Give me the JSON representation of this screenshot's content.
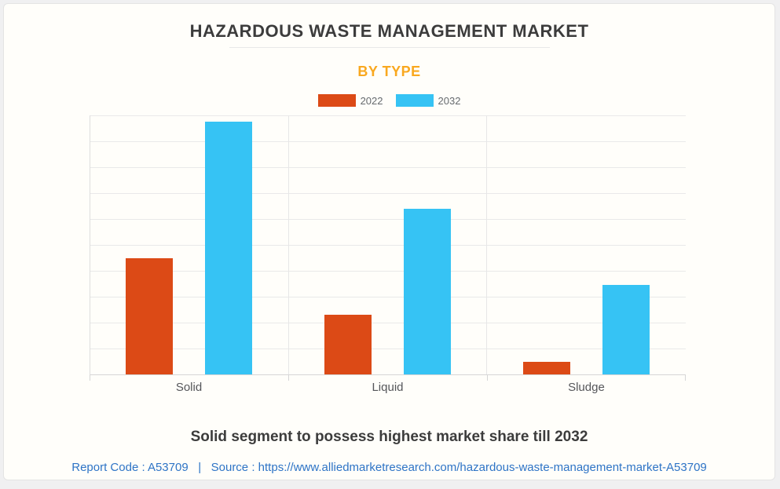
{
  "header": {
    "title": "HAZARDOUS WASTE MANAGEMENT MARKET",
    "subtitle": "BY TYPE"
  },
  "legend": {
    "items": [
      {
        "label": "2022",
        "color": "#dc4a16"
      },
      {
        "label": "2032",
        "color": "#36c3f4"
      }
    ]
  },
  "chart_data": {
    "type": "bar",
    "title": "HAZARDOUS WASTE MANAGEMENT MARKET",
    "subtitle": "BY TYPE",
    "categories": [
      "Solid",
      "Liquid",
      "Sludge"
    ],
    "series": [
      {
        "name": "2022",
        "color": "#dc4a16",
        "values": [
          45,
          23,
          5
        ]
      },
      {
        "name": "2032",
        "color": "#36c3f4",
        "values": [
          97.5,
          64,
          34.5
        ]
      }
    ],
    "xlabel": "",
    "ylabel": "",
    "ylim": [
      0,
      100
    ],
    "y_tick_labels_shown": false,
    "grid": true,
    "horizontal_grid_divisions": 10,
    "vertical_category_separators": true,
    "legend_position": "top",
    "note": "No numeric axis labels shown; series values are relative bar heights as % of axis max."
  },
  "footer": {
    "caption": "Solid segment to possess highest market share till 2032",
    "report_code": "Report Code : A53709",
    "separator": "|",
    "source_prefix": "Source :",
    "source_url": "https://www.alliedmarketresearch.com/hazardous-waste-management-market-A53709"
  },
  "colors": {
    "accent_2022": "#dc4a16",
    "accent_2032": "#36c3f4",
    "subtitle_amber": "#f9a81f",
    "title_text": "#3c3c3c",
    "category_label": "#55565a",
    "link_blue": "#2e74c6",
    "card_background": "#fffefa",
    "page_background": "#f0f0f1"
  }
}
